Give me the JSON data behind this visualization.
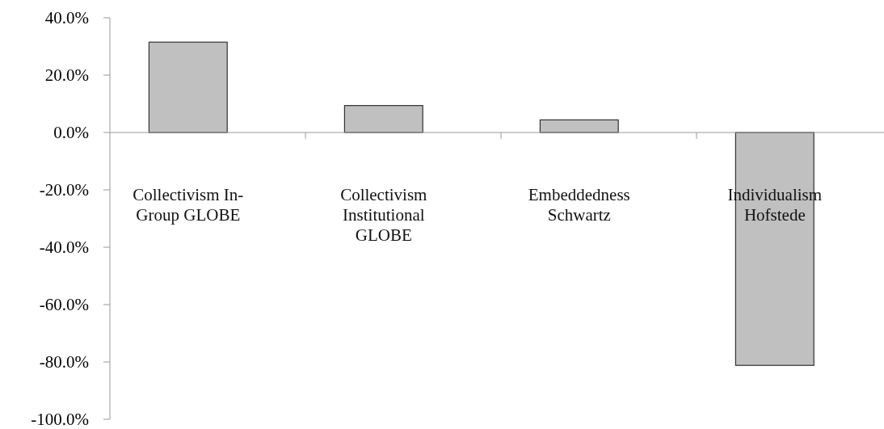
{
  "chart_data": {
    "type": "bar",
    "categories": [
      "Collectivism In-Group GLOBE",
      "Collectivism Institutional GLOBE",
      "Embeddedness Schwartz",
      "Individualism Hofstede"
    ],
    "values": [
      31.5,
      9.4,
      4.4,
      -81.2
    ],
    "color": "#c0c0c0",
    "ylim": [
      -100,
      40
    ],
    "yticks": [
      {
        "value": -100,
        "label": "-100.0%"
      },
      {
        "value": -80,
        "label": "-80.0%"
      },
      {
        "value": -60,
        "label": "-60.0%"
      },
      {
        "value": -40,
        "label": "-40.0%"
      },
      {
        "value": -20,
        "label": "-20.0%"
      },
      {
        "value": 0,
        "label": "0.0%"
      },
      {
        "value": 20,
        "label": "20.0%"
      },
      {
        "value": 40,
        "label": "40.0%"
      }
    ],
    "tick_labels": true
  }
}
